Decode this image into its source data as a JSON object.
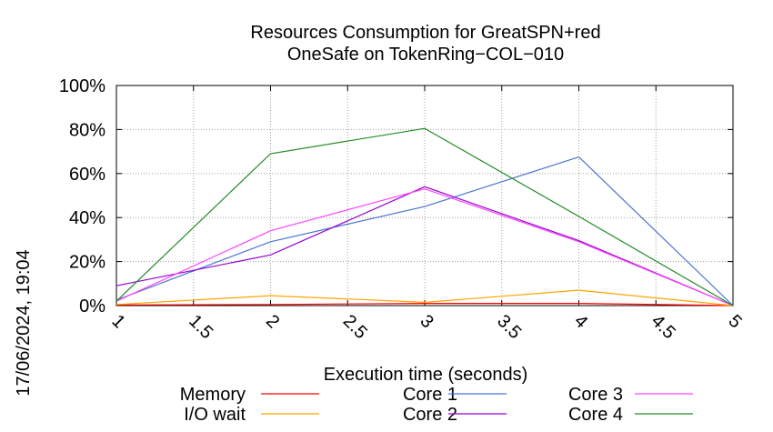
{
  "chart_data": {
    "type": "line",
    "title": [
      "Resources Consumption for GreatSPN+red",
      "OneSafe on TokenRing−COL−010"
    ],
    "xlabel": "Execution time (seconds)",
    "ylabel": "",
    "timestamp": "17/06/2024, 19:04",
    "xlim": [
      1,
      5
    ],
    "ylim": [
      0,
      100
    ],
    "x_ticks": [
      "1",
      "1.5",
      "2",
      "2.5",
      "3",
      "3.5",
      "4",
      "4.5",
      "5"
    ],
    "y_ticks": [
      "0%",
      "20%",
      "40%",
      "60%",
      "80%",
      "100%"
    ],
    "grid": true,
    "legend_position": "bottom",
    "x": [
      1,
      2,
      3,
      4,
      5
    ],
    "series": [
      {
        "name": "Memory",
        "color": "#ff0000",
        "values": [
          0.3,
          0.5,
          1.0,
          1.0,
          0
        ]
      },
      {
        "name": "I/O wait",
        "color": "#ffa500",
        "values": [
          0.5,
          4.5,
          1.5,
          7.0,
          0
        ]
      },
      {
        "name": "Core 1",
        "color": "#4a74d0",
        "values": [
          2.5,
          29.0,
          45.0,
          67.5,
          0
        ]
      },
      {
        "name": "Core 2",
        "color": "#9400d3",
        "values": [
          9.0,
          23.0,
          54.0,
          29.5,
          0
        ]
      },
      {
        "name": "Core 3",
        "color": "#ff44ff",
        "values": [
          2.0,
          34.0,
          53.0,
          29.0,
          0
        ]
      },
      {
        "name": "Core 4",
        "color": "#228b22",
        "values": [
          2.0,
          69.0,
          80.5,
          40.5,
          0
        ]
      }
    ]
  }
}
